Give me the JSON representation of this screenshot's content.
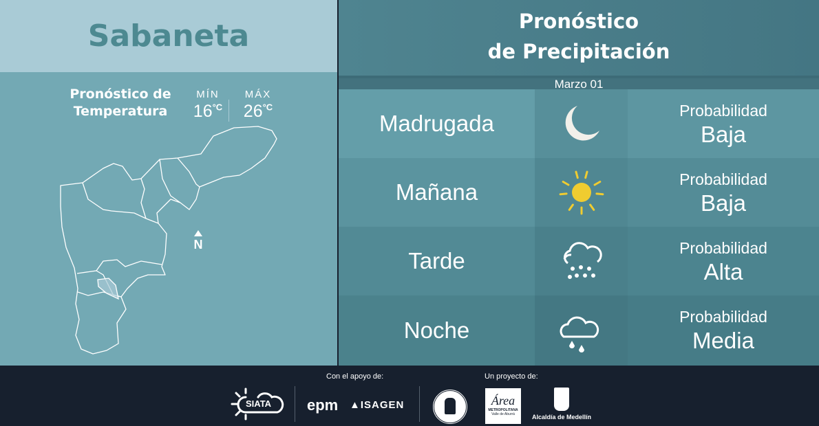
{
  "location": "Sabaneta",
  "temperature": {
    "title_line1": "Pronóstico de",
    "title_line2": "Temperatura",
    "min_label": "MÍN",
    "min_value": "16",
    "max_label": "MÁX",
    "max_value": "26",
    "unit": "°C"
  },
  "map": {
    "north_label": "N"
  },
  "precipitation": {
    "title_line1": "Pronóstico",
    "title_line2": "de Precipitación",
    "date": "Marzo 01",
    "rows": [
      {
        "period": "Madrugada",
        "icon": "moon-icon",
        "label": "Probabilidad",
        "level": "Baja"
      },
      {
        "period": "Mañana",
        "icon": "sun-icon",
        "label": "Probabilidad",
        "level": "Baja"
      },
      {
        "period": "Tarde",
        "icon": "heavy-rain-cloud-icon",
        "label": "Probabilidad",
        "level": "Alta"
      },
      {
        "period": "Noche",
        "icon": "night-rain-cloud-icon",
        "label": "Probabilidad",
        "level": "Media"
      }
    ]
  },
  "footer": {
    "support_label": "Con el apoyo de:",
    "project_label": "Un proyecto de:",
    "logos": [
      "SIATA",
      "epm",
      "ISAGEN",
      "Medellín seal",
      "Área Metropolitana Valle de Aburrá",
      "Alcaldía de Medellín"
    ],
    "siata": "SIATA",
    "epm": "epm",
    "isagen": "ISAGEN",
    "area": "Área",
    "area_sub": "METROPOLITANA",
    "area_sub2": "Valle de Aburrá",
    "alcaldia": "Alcaldía de Medellín"
  },
  "colors": {
    "sun": "#f0cc30",
    "moon": "#f2f0ea",
    "footer": "#17202e",
    "title": "#4d8991"
  }
}
